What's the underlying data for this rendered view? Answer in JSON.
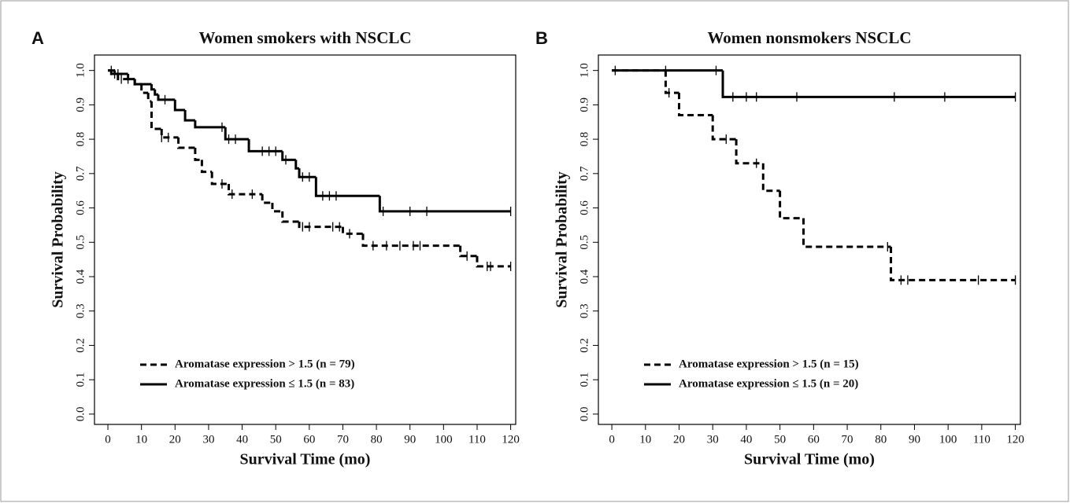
{
  "chart_data": [
    {
      "type": "step",
      "label": "A",
      "title": "Women smokers with NSCLC",
      "xlabel": "Survival Time (mo)",
      "ylabel": "Survival Probability",
      "xlim": [
        -4,
        121.5
      ],
      "ylim": [
        -0.03,
        1.045
      ],
      "xticks": [
        0,
        10,
        20,
        30,
        40,
        50,
        60,
        70,
        80,
        90,
        100,
        110,
        120
      ],
      "yticks": [
        {
          "value": 0,
          "label": "0.0"
        },
        0.1,
        0.2,
        0.3,
        0.4,
        0.5,
        0.6,
        0.7,
        0.8,
        0.9,
        {
          "value": 1,
          "label": "1.0"
        }
      ],
      "series": [
        {
          "name": "Aromatase expression > 1.5 (n = 79)",
          "color": "#000000",
          "dashed": true,
          "x": [
            0,
            1,
            3,
            8,
            10,
            12,
            13,
            16,
            21,
            26,
            28,
            31,
            36,
            46,
            49,
            52,
            57,
            70,
            76,
            105,
            110,
            120
          ],
          "values": [
            1,
            0.99,
            0.975,
            0.96,
            0.935,
            0.91,
            0.83,
            0.805,
            0.775,
            0.74,
            0.705,
            0.67,
            0.64,
            0.615,
            0.59,
            0.56,
            0.545,
            0.525,
            0.49,
            0.46,
            0.43,
            0.43
          ],
          "censored_x": [
            2,
            4,
            6,
            16,
            18,
            34,
            37,
            43,
            58,
            60,
            67,
            69,
            72,
            79,
            83,
            87,
            91,
            93,
            107,
            113,
            114,
            120
          ],
          "censored_values": [
            0.99,
            0.975,
            0.975,
            0.805,
            0.805,
            0.67,
            0.64,
            0.64,
            0.545,
            0.545,
            0.545,
            0.545,
            0.525,
            0.49,
            0.49,
            0.49,
            0.49,
            0.49,
            0.46,
            0.43,
            0.43,
            0.43
          ]
        },
        {
          "name": "Aromatase expression ≤ 1.5 (n = 83)",
          "color": "#000000",
          "dashed": false,
          "x": [
            0,
            2,
            6,
            8,
            13,
            14,
            15,
            20,
            23,
            26,
            35,
            42,
            52,
            56,
            57,
            62,
            81,
            120
          ],
          "values": [
            1,
            0.99,
            0.975,
            0.96,
            0.945,
            0.93,
            0.915,
            0.885,
            0.855,
            0.835,
            0.8,
            0.765,
            0.74,
            0.715,
            0.69,
            0.635,
            0.59,
            0.59
          ],
          "censored_x": [
            1,
            3,
            17,
            34,
            36,
            38,
            46,
            48,
            50,
            53,
            58,
            60,
            64,
            66,
            68,
            82,
            90,
            95,
            120
          ],
          "censored_values": [
            1,
            0.99,
            0.915,
            0.835,
            0.8,
            0.8,
            0.765,
            0.765,
            0.765,
            0.74,
            0.69,
            0.69,
            0.635,
            0.635,
            0.635,
            0.59,
            0.59,
            0.59,
            0.59
          ]
        }
      ]
    },
    {
      "type": "step",
      "label": "B",
      "title": "Women nonsmokers NSCLC",
      "xlabel": "Survival Time (mo)",
      "ylabel": "Survival Probability",
      "xlim": [
        -4,
        121.5
      ],
      "ylim": [
        -0.03,
        1.045
      ],
      "xticks": [
        0,
        10,
        20,
        30,
        40,
        50,
        60,
        70,
        80,
        90,
        100,
        110,
        120
      ],
      "yticks": [
        {
          "value": 0,
          "label": "0.0"
        },
        0.1,
        0.2,
        0.3,
        0.4,
        0.5,
        0.6,
        0.7,
        0.8,
        0.9,
        {
          "value": 1,
          "label": "1.0"
        }
      ],
      "series": [
        {
          "name": "Aromatase expression > 1.5 (n = 15)",
          "color": "#000000",
          "dashed": true,
          "x": [
            0,
            16,
            20,
            30,
            37,
            45,
            50,
            57,
            83,
            120
          ],
          "values": [
            1,
            0.935,
            0.87,
            0.8,
            0.73,
            0.65,
            0.57,
            0.487,
            0.39,
            0.39
          ],
          "censored_x": [
            17,
            34,
            43,
            82,
            86,
            88,
            109,
            120
          ],
          "censored_values": [
            0.935,
            0.8,
            0.73,
            0.487,
            0.39,
            0.39,
            0.39,
            0.39
          ]
        },
        {
          "name": "Aromatase expression ≤ 1.5 (n = 20)",
          "color": "#000000",
          "dashed": false,
          "x": [
            0,
            33,
            120
          ],
          "values": [
            1,
            0.923,
            0.923
          ],
          "censored_x": [
            1,
            16,
            31,
            36,
            40,
            43,
            55,
            84,
            99,
            120
          ],
          "censored_values": [
            1,
            1,
            1,
            0.923,
            0.923,
            0.923,
            0.923,
            0.923,
            0.923,
            0.923
          ]
        }
      ]
    }
  ]
}
